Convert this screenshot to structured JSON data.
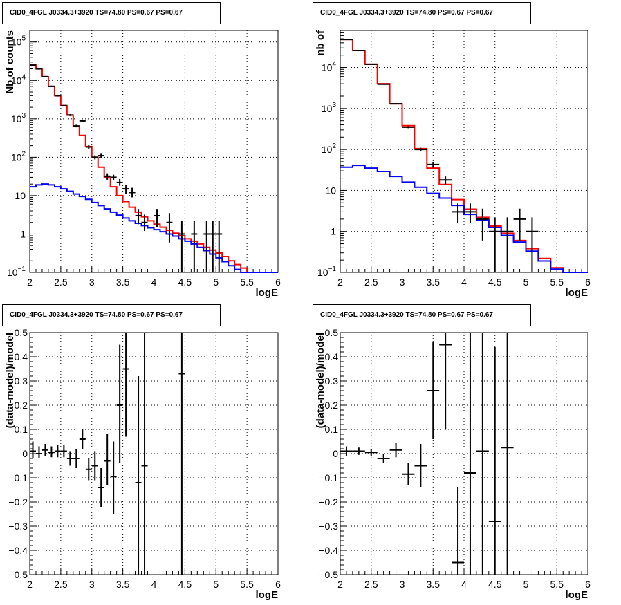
{
  "chart_data": [
    {
      "type": "line",
      "title": "CID0_4FGL J0334.3+3920 TS=74.80 PS=0.67 PS=0.67",
      "xlabel": "logE",
      "ylabel": "Nb of counts",
      "xlim": [
        2,
        6
      ],
      "ylim": [
        0.1,
        200000
      ],
      "yscale": "log",
      "grid": true,
      "xticks": [
        2,
        2.5,
        3,
        3.5,
        4,
        4.5,
        5,
        5.5,
        6
      ],
      "xtick_labels": [
        "2",
        "2.5",
        "3",
        "3.5",
        "4",
        "4.5",
        "5",
        "5.5",
        "6"
      ],
      "ytick_labels": [
        {
          "v": 0.1,
          "base": "10",
          "exp": "−1"
        },
        {
          "v": 1,
          "base": "1",
          "exp": ""
        },
        {
          "v": 10,
          "base": "10",
          "exp": ""
        },
        {
          "v": 100,
          "base": "10",
          "exp": "2"
        },
        {
          "v": 1000,
          "base": "10",
          "exp": "3"
        },
        {
          "v": 10000,
          "base": "10",
          "exp": "4"
        },
        {
          "v": 100000,
          "base": "10",
          "exp": "5"
        }
      ],
      "bin_width": 0.1,
      "series": [
        {
          "color": "#ff0000",
          "style": "step",
          "edges": [
            2.0,
            2.1,
            2.2,
            2.3,
            2.4,
            2.5,
            2.6,
            2.7,
            2.8,
            2.9,
            3.0,
            3.1,
            3.2,
            3.3,
            3.4,
            3.5,
            3.6,
            3.7,
            3.8,
            3.9,
            4.0,
            4.1,
            4.2,
            4.3,
            4.4,
            4.5,
            4.6,
            4.7,
            4.8,
            4.9,
            5.0,
            5.1,
            5.2,
            5.3,
            5.4,
            5.5,
            5.6,
            5.7,
            5.8,
            5.9,
            6.0
          ],
          "values": [
            26000,
            20000,
            12500,
            7000,
            4000,
            2200,
            1250,
            650,
            370,
            190,
            100,
            55,
            30,
            17,
            10,
            7,
            5,
            3.7,
            2.8,
            2.2,
            1.8,
            1.5,
            1.25,
            1.05,
            0.9,
            0.75,
            0.65,
            0.55,
            0.45,
            0.38,
            0.32,
            0.26,
            0.2,
            0.16,
            0.13,
            0.1,
            0.1,
            0.1,
            0.1,
            0.1
          ]
        },
        {
          "color": "#0000ff",
          "style": "step",
          "edges": [
            2.0,
            2.1,
            2.2,
            2.3,
            2.4,
            2.5,
            2.6,
            2.7,
            2.8,
            2.9,
            3.0,
            3.1,
            3.2,
            3.3,
            3.4,
            3.5,
            3.6,
            3.7,
            3.8,
            3.9,
            4.0,
            4.1,
            4.2,
            4.3,
            4.4,
            4.5,
            4.6,
            4.7,
            4.8,
            4.9,
            5.0,
            5.1,
            5.2,
            5.3,
            5.4,
            5.5,
            5.6,
            5.7,
            5.8,
            5.9,
            6.0
          ],
          "values": [
            17,
            19,
            20,
            19,
            17,
            15,
            13,
            11,
            9.5,
            8,
            6.6,
            5.5,
            4.5,
            3.7,
            3.1,
            2.6,
            2.2,
            1.9,
            1.65,
            1.45,
            1.3,
            1.15,
            1.0,
            0.88,
            0.75,
            0.65,
            0.55,
            0.45,
            0.37,
            0.3,
            0.24,
            0.19,
            0.15,
            0.12,
            0.1,
            0.1,
            0.1,
            0.1,
            0.1,
            0.1
          ]
        }
      ],
      "points": [
        {
          "x": 2.05,
          "y": 25000,
          "lo": 24000,
          "hi": 26000
        },
        {
          "x": 2.15,
          "y": 20000,
          "lo": 19000,
          "hi": 21000
        },
        {
          "x": 2.25,
          "y": 12500,
          "lo": 12000,
          "hi": 13000
        },
        {
          "x": 2.35,
          "y": 7000,
          "lo": 6700,
          "hi": 7300
        },
        {
          "x": 2.45,
          "y": 4000,
          "lo": 3800,
          "hi": 4200
        },
        {
          "x": 2.55,
          "y": 2200,
          "lo": 2100,
          "hi": 2300
        },
        {
          "x": 2.65,
          "y": 1250,
          "lo": 1180,
          "hi": 1320
        },
        {
          "x": 2.75,
          "y": 650,
          "lo": 600,
          "hi": 700
        },
        {
          "x": 2.85,
          "y": 880,
          "lo": 820,
          "hi": 940
        },
        {
          "x": 2.95,
          "y": 185,
          "lo": 165,
          "hi": 205
        },
        {
          "x": 3.05,
          "y": 100,
          "lo": 88,
          "hi": 112
        },
        {
          "x": 3.15,
          "y": 110,
          "lo": 97,
          "hi": 123
        },
        {
          "x": 3.25,
          "y": 32,
          "lo": 26,
          "hi": 38
        },
        {
          "x": 3.35,
          "y": 30,
          "lo": 25,
          "hi": 35
        },
        {
          "x": 3.45,
          "y": 22,
          "lo": 18,
          "hi": 27
        },
        {
          "x": 3.55,
          "y": 15,
          "lo": 11,
          "hi": 19
        },
        {
          "x": 3.65,
          "y": 12,
          "lo": 9,
          "hi": 16
        },
        {
          "x": 3.75,
          "y": 3,
          "lo": 1.8,
          "hi": 4.5
        },
        {
          "x": 3.85,
          "y": 2,
          "lo": 1.2,
          "hi": 3.2
        },
        {
          "x": 4.05,
          "y": 3,
          "lo": 1.5,
          "hi": 4.5
        },
        {
          "x": 4.25,
          "y": 2,
          "lo": 0.6,
          "hi": 3.5
        },
        {
          "x": 4.45,
          "y": 1,
          "lo": 0.1,
          "hi": 2.2
        },
        {
          "x": 4.65,
          "y": 1,
          "lo": 0.1,
          "hi": 2.2
        },
        {
          "x": 4.85,
          "y": 1,
          "lo": 0.1,
          "hi": 2.2
        },
        {
          "x": 4.95,
          "y": 1,
          "lo": 0.1,
          "hi": 2.2
        },
        {
          "x": 5.05,
          "y": 1,
          "lo": 0.1,
          "hi": 2.2
        }
      ]
    },
    {
      "type": "line",
      "title": "CID0_4FGL J0334.3+3920 TS=74.80 PS=0.67 PS=0.67",
      "xlabel": "logE",
      "ylabel": "nb of",
      "xlim": [
        2,
        6
      ],
      "ylim": [
        0.1,
        80000
      ],
      "yscale": "log",
      "grid": true,
      "xticks": [
        2,
        2.5,
        3,
        3.5,
        4,
        4.5,
        5,
        5.5,
        6
      ],
      "xtick_labels": [
        "2",
        "2.5",
        "3",
        "3.5",
        "4",
        "4.5",
        "5",
        "5.5",
        "6"
      ],
      "ytick_labels": [
        {
          "v": 0.1,
          "base": "10",
          "exp": "−1"
        },
        {
          "v": 1,
          "base": "1",
          "exp": ""
        },
        {
          "v": 10,
          "base": "10",
          "exp": ""
        },
        {
          "v": 100,
          "base": "10",
          "exp": "2"
        },
        {
          "v": 1000,
          "base": "10",
          "exp": "3"
        },
        {
          "v": 10000,
          "base": "10",
          "exp": "4"
        }
      ],
      "bin_width": 0.2,
      "series": [
        {
          "color": "#ff0000",
          "style": "step",
          "edges": [
            2.0,
            2.2,
            2.4,
            2.6,
            2.8,
            3.0,
            3.2,
            3.4,
            3.6,
            3.8,
            4.0,
            4.2,
            4.4,
            4.6,
            4.8,
            5.0,
            5.2,
            5.4,
            5.6,
            5.8,
            6.0
          ],
          "values": [
            48000,
            26000,
            12000,
            4000,
            1300,
            380,
            105,
            35,
            14,
            6,
            3.5,
            2.2,
            1.35,
            0.9,
            0.6,
            0.38,
            0.22,
            0.13,
            0.1,
            0.1
          ]
        },
        {
          "color": "#0000ff",
          "style": "step",
          "edges": [
            2.0,
            2.2,
            2.4,
            2.6,
            2.8,
            3.0,
            3.2,
            3.4,
            3.6,
            3.8,
            4.0,
            4.2,
            4.4,
            4.6,
            4.8,
            5.0,
            5.2,
            5.4,
            5.6,
            5.8,
            6.0
          ],
          "values": [
            37,
            41,
            35,
            29,
            22,
            16,
            12,
            8.5,
            6.5,
            4.3,
            2.6,
            1.9,
            1.25,
            0.8,
            0.55,
            0.33,
            0.19,
            0.12,
            0.1,
            0.1
          ]
        }
      ],
      "points": [
        {
          "x": 2.1,
          "y": 48000,
          "lo": 47000,
          "hi": 49000
        },
        {
          "x": 2.3,
          "y": 26000,
          "lo": 25500,
          "hi": 26500
        },
        {
          "x": 2.5,
          "y": 12000,
          "lo": 11700,
          "hi": 12300
        },
        {
          "x": 2.7,
          "y": 3900,
          "lo": 3800,
          "hi": 4000
        },
        {
          "x": 2.9,
          "y": 1300,
          "lo": 1250,
          "hi": 1350
        },
        {
          "x": 3.1,
          "y": 350,
          "lo": 330,
          "hi": 370
        },
        {
          "x": 3.3,
          "y": 100,
          "lo": 90,
          "hi": 110
        },
        {
          "x": 3.5,
          "y": 43,
          "lo": 36,
          "hi": 50
        },
        {
          "x": 3.7,
          "y": 18,
          "lo": 14,
          "hi": 22
        },
        {
          "x": 3.9,
          "y": 3,
          "lo": 1.6,
          "hi": 4.8
        },
        {
          "x": 4.1,
          "y": 3,
          "lo": 1.6,
          "hi": 4.8
        },
        {
          "x": 4.3,
          "y": 2,
          "lo": 0.6,
          "hi": 3.6
        },
        {
          "x": 4.5,
          "y": 1,
          "lo": 0.1,
          "hi": 2.2
        },
        {
          "x": 4.7,
          "y": 1,
          "lo": 0.1,
          "hi": 2.2
        },
        {
          "x": 4.9,
          "y": 2,
          "lo": 0.6,
          "hi": 3.6
        },
        {
          "x": 5.1,
          "y": 1,
          "lo": 0.1,
          "hi": 2.2
        }
      ]
    },
    {
      "type": "scatter",
      "title": "CID0_4FGL J0334.3+3920 TS=74.80 PS=0.67 PS=0.67",
      "xlabel": "logE",
      "ylabel": "(data-model)/model",
      "xlim": [
        2,
        6
      ],
      "ylim": [
        -0.5,
        0.5
      ],
      "yscale": "linear",
      "grid": true,
      "xticks": [
        2,
        2.5,
        3,
        3.5,
        4,
        4.5,
        5,
        5.5,
        6
      ],
      "xtick_labels": [
        "2",
        "2.5",
        "3",
        "3.5",
        "4",
        "4.5",
        "5",
        "5.5",
        "6"
      ],
      "yticks": [
        -0.5,
        -0.4,
        -0.3,
        -0.2,
        -0.1,
        0,
        0.1,
        0.2,
        0.3,
        0.4,
        0.5
      ],
      "ytick_labels": [
        "−0.5",
        "−0.4",
        "−0.3",
        "−0.2",
        "−0.1",
        "0",
        "0.1",
        "0.2",
        "0.3",
        "0.4",
        "0.5"
      ],
      "bin_width": 0.1,
      "series": [],
      "points": [
        {
          "x": 2.05,
          "y": 0.01,
          "lo": -0.02,
          "hi": 0.05
        },
        {
          "x": 2.15,
          "y": 0.0,
          "lo": -0.02,
          "hi": 0.03
        },
        {
          "x": 2.25,
          "y": 0.015,
          "lo": -0.01,
          "hi": 0.04
        },
        {
          "x": 2.35,
          "y": 0.005,
          "lo": -0.015,
          "hi": 0.03
        },
        {
          "x": 2.45,
          "y": 0.01,
          "lo": -0.015,
          "hi": 0.035
        },
        {
          "x": 2.55,
          "y": 0.01,
          "lo": -0.015,
          "hi": 0.035
        },
        {
          "x": 2.65,
          "y": -0.02,
          "lo": -0.05,
          "hi": 0.01
        },
        {
          "x": 2.75,
          "y": -0.02,
          "lo": -0.06,
          "hi": 0.02
        },
        {
          "x": 2.85,
          "y": 0.06,
          "lo": 0.02,
          "hi": 0.1
        },
        {
          "x": 2.95,
          "y": -0.065,
          "lo": -0.11,
          "hi": -0.02
        },
        {
          "x": 3.05,
          "y": -0.05,
          "lo": -0.11,
          "hi": 0.01
        },
        {
          "x": 3.15,
          "y": -0.14,
          "lo": -0.22,
          "hi": -0.06
        },
        {
          "x": 3.25,
          "y": -0.03,
          "lo": -0.13,
          "hi": 0.08
        },
        {
          "x": 3.35,
          "y": -0.095,
          "lo": -0.25,
          "hi": 0.05
        },
        {
          "x": 3.45,
          "y": 0.2,
          "lo": -0.04,
          "hi": 0.45
        },
        {
          "x": 3.55,
          "y": 0.35,
          "lo": 0.07,
          "hi": 0.5
        },
        {
          "x": 3.75,
          "y": -0.12,
          "lo": -0.5,
          "hi": 0.32
        },
        {
          "x": 3.85,
          "y": -0.05,
          "lo": -0.5,
          "hi": 0.5
        },
        {
          "x": 4.45,
          "y": 0.33,
          "lo": -0.5,
          "hi": 0.5
        }
      ]
    },
    {
      "type": "scatter",
      "title": "CID0_4FGL J0334.3+3920 TS=74.80 PS=0.67 PS=0.67",
      "xlabel": "logE",
      "ylabel": "(data-model)/model",
      "xlim": [
        2,
        6
      ],
      "ylim": [
        -0.5,
        0.5
      ],
      "yscale": "linear",
      "grid": true,
      "xticks": [
        2,
        2.5,
        3,
        3.5,
        4,
        4.5,
        5,
        5.5,
        6
      ],
      "xtick_labels": [
        "2",
        "2.5",
        "3",
        "3.5",
        "4",
        "4.5",
        "5",
        "5.5",
        "6"
      ],
      "yticks": [
        -0.5,
        -0.4,
        -0.3,
        -0.2,
        -0.1,
        0,
        0.1,
        0.2,
        0.3,
        0.4,
        0.5
      ],
      "ytick_labels": [
        "−0.5",
        "−0.4",
        "−0.3",
        "−0.2",
        "−0.1",
        "0",
        "0.1",
        "0.2",
        "0.3",
        "0.4",
        "0.5"
      ],
      "bin_width": 0.2,
      "series": [],
      "points": [
        {
          "x": 2.1,
          "y": 0.01,
          "lo": -0.01,
          "hi": 0.03
        },
        {
          "x": 2.3,
          "y": 0.01,
          "lo": -0.005,
          "hi": 0.025
        },
        {
          "x": 2.5,
          "y": 0.005,
          "lo": -0.01,
          "hi": 0.02
        },
        {
          "x": 2.7,
          "y": -0.02,
          "lo": -0.04,
          "hi": 0.0
        },
        {
          "x": 2.9,
          "y": 0.015,
          "lo": -0.015,
          "hi": 0.045
        },
        {
          "x": 3.1,
          "y": -0.085,
          "lo": -0.13,
          "hi": -0.04
        },
        {
          "x": 3.3,
          "y": -0.05,
          "lo": -0.14,
          "hi": 0.04
        },
        {
          "x": 3.5,
          "y": 0.26,
          "lo": 0.06,
          "hi": 0.46
        },
        {
          "x": 3.7,
          "y": 0.45,
          "lo": 0.1,
          "hi": 0.5
        },
        {
          "x": 3.9,
          "y": -0.45,
          "lo": -0.5,
          "hi": -0.14
        },
        {
          "x": 4.1,
          "y": -0.08,
          "lo": -0.5,
          "hi": 0.5
        },
        {
          "x": 4.3,
          "y": 0.01,
          "lo": -0.5,
          "hi": 0.5
        },
        {
          "x": 4.5,
          "y": -0.28,
          "lo": -0.5,
          "hi": 0.44
        },
        {
          "x": 4.7,
          "y": 0.025,
          "lo": -0.5,
          "hi": 0.5
        }
      ]
    }
  ]
}
